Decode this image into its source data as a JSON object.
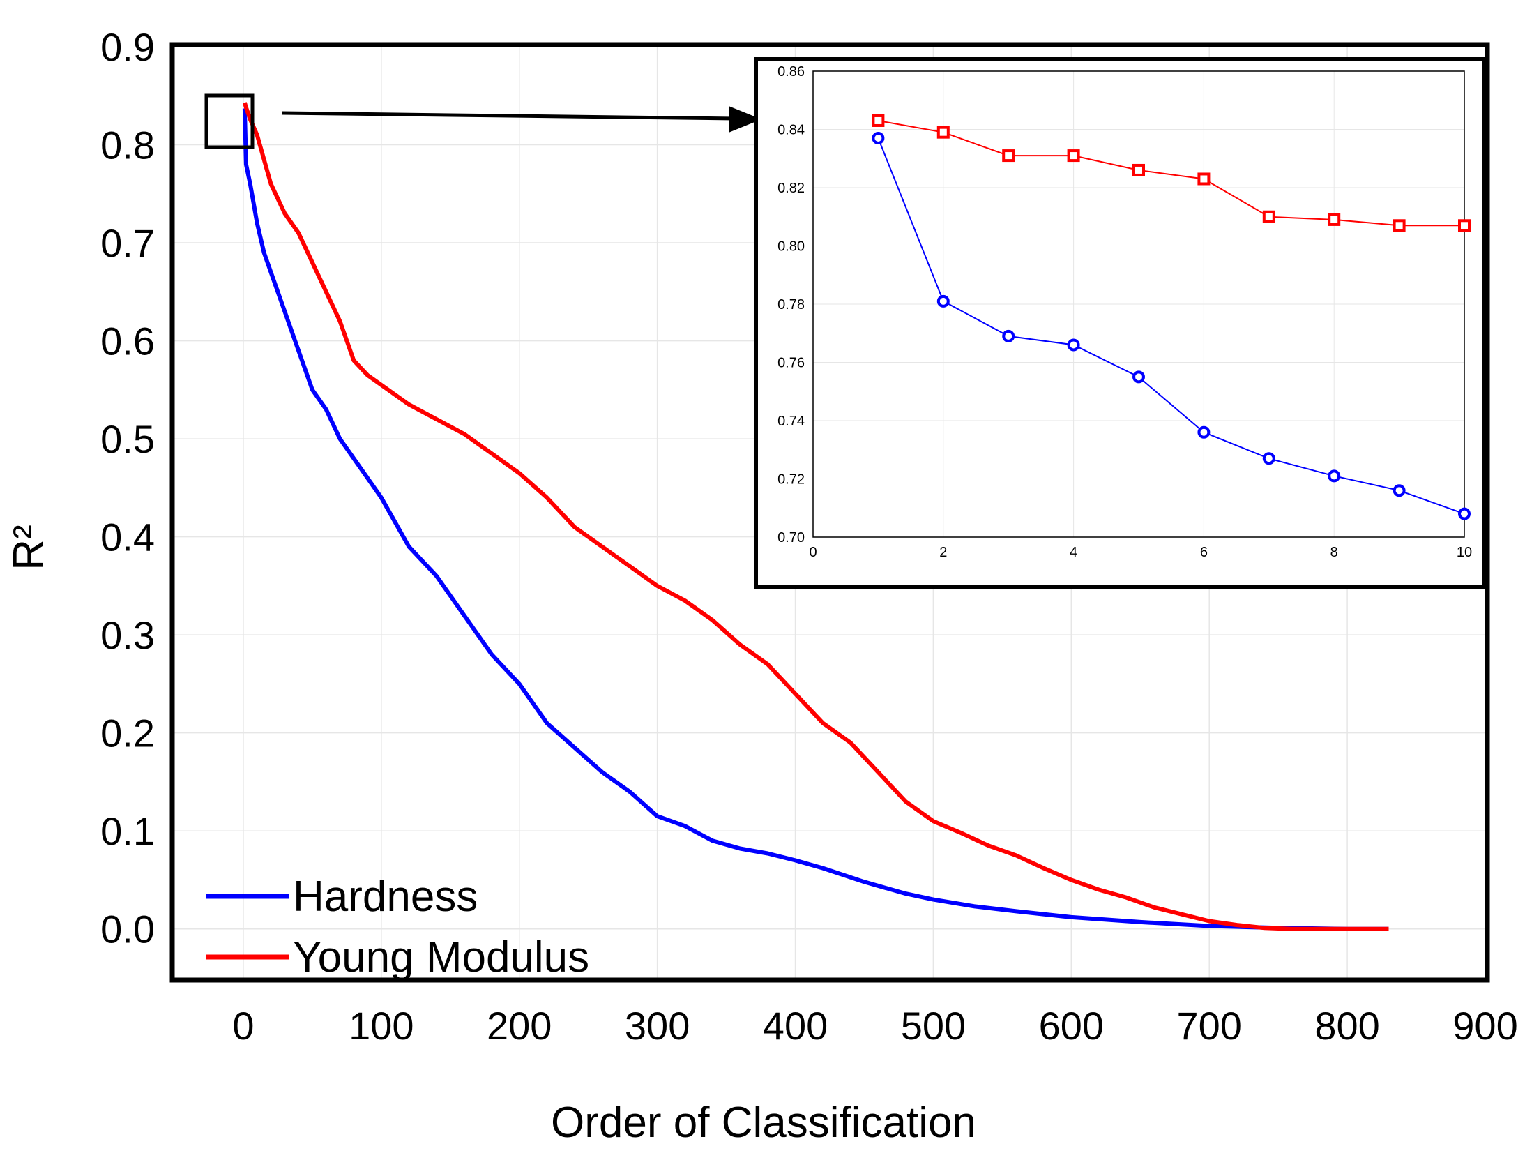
{
  "chart_data": [
    {
      "type": "line",
      "title": "",
      "xlabel": "Order of Classification",
      "ylabel": "R²",
      "xlim": [
        -50,
        900
      ],
      "ylim": [
        -0.05,
        0.9
      ],
      "xticks": [
        0,
        100,
        200,
        300,
        400,
        500,
        600,
        700,
        800,
        900
      ],
      "xtick_labels": [
        "0",
        "100",
        "200",
        "300",
        "400",
        "500",
        "600",
        "700",
        "800",
        "900"
      ],
      "yticks": [
        0.0,
        0.1,
        0.2,
        0.3,
        0.4,
        0.5,
        0.6,
        0.7,
        0.8,
        0.9
      ],
      "ytick_labels": [
        "0.0",
        "0.1",
        "0.2",
        "0.3",
        "0.4",
        "0.5",
        "0.6",
        "0.7",
        "0.8",
        "0.9"
      ],
      "grid": true,
      "legend_position": "bottom-left",
      "series": [
        {
          "name": "Hardness",
          "color": "#0000ff",
          "x": [
            1,
            2,
            5,
            10,
            15,
            20,
            30,
            40,
            50,
            60,
            70,
            80,
            90,
            100,
            120,
            140,
            160,
            180,
            200,
            220,
            240,
            260,
            280,
            300,
            320,
            340,
            360,
            380,
            400,
            420,
            450,
            480,
            500,
            530,
            560,
            600,
            650,
            700,
            750,
            800,
            830
          ],
          "y": [
            0.837,
            0.78,
            0.76,
            0.72,
            0.69,
            0.67,
            0.63,
            0.59,
            0.55,
            0.53,
            0.5,
            0.48,
            0.46,
            0.44,
            0.39,
            0.36,
            0.32,
            0.28,
            0.25,
            0.21,
            0.185,
            0.16,
            0.14,
            0.115,
            0.105,
            0.09,
            0.082,
            0.077,
            0.07,
            0.062,
            0.048,
            0.036,
            0.03,
            0.023,
            0.018,
            0.012,
            0.007,
            0.003,
            0.001,
            0.0,
            0.0
          ]
        },
        {
          "name": "Young Modulus",
          "color": "#ff0000",
          "x": [
            1,
            2,
            5,
            10,
            20,
            30,
            40,
            50,
            60,
            70,
            80,
            90,
            100,
            120,
            140,
            160,
            180,
            200,
            220,
            240,
            260,
            280,
            300,
            320,
            340,
            360,
            380,
            400,
            420,
            440,
            460,
            480,
            500,
            520,
            540,
            560,
            580,
            600,
            620,
            640,
            660,
            680,
            700,
            720,
            740,
            760,
            800,
            830
          ],
          "y": [
            0.843,
            0.838,
            0.826,
            0.81,
            0.76,
            0.73,
            0.71,
            0.68,
            0.65,
            0.62,
            0.58,
            0.565,
            0.555,
            0.535,
            0.52,
            0.505,
            0.485,
            0.465,
            0.44,
            0.41,
            0.39,
            0.37,
            0.35,
            0.335,
            0.315,
            0.29,
            0.27,
            0.24,
            0.21,
            0.19,
            0.16,
            0.13,
            0.11,
            0.098,
            0.085,
            0.075,
            0.062,
            0.05,
            0.04,
            0.032,
            0.022,
            0.015,
            0.008,
            0.004,
            0.001,
            0.0,
            0.0,
            0.0
          ]
        }
      ]
    },
    {
      "type": "line",
      "title": "",
      "xlabel": "",
      "ylabel": "",
      "xlim": [
        0,
        10
      ],
      "ylim": [
        0.7,
        0.86
      ],
      "xticks": [
        0,
        2,
        4,
        6,
        8,
        10
      ],
      "xtick_labels": [
        "0",
        "2",
        "4",
        "6",
        "8",
        "10"
      ],
      "yticks": [
        0.7,
        0.72,
        0.74,
        0.76,
        0.78,
        0.8,
        0.82,
        0.84,
        0.86
      ],
      "ytick_labels": [
        "0.70",
        "0.72",
        "0.74",
        "0.76",
        "0.78",
        "0.80",
        "0.82",
        "0.84",
        "0.86"
      ],
      "grid": true,
      "legend_position": "none",
      "series": [
        {
          "name": "Hardness",
          "color": "#0000ff",
          "marker": "circle",
          "x": [
            1,
            2,
            3,
            4,
            5,
            6,
            7,
            8,
            9,
            10
          ],
          "y": [
            0.837,
            0.781,
            0.769,
            0.766,
            0.755,
            0.736,
            0.727,
            0.721,
            0.716,
            0.708
          ]
        },
        {
          "name": "Young Modulus",
          "color": "#ff0000",
          "marker": "square",
          "x": [
            1,
            2,
            3,
            4,
            5,
            6,
            7,
            8,
            9,
            10
          ],
          "y": [
            0.843,
            0.839,
            0.831,
            0.831,
            0.826,
            0.823,
            0.81,
            0.809,
            0.807,
            0.807
          ]
        }
      ]
    }
  ]
}
